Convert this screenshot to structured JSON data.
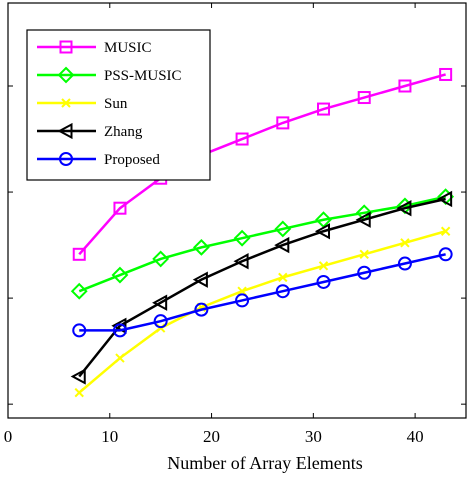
{
  "chart_data": {
    "type": "line",
    "title": "",
    "xlabel": "Number of Array Elements",
    "ylabel": "",
    "xlim": [
      0,
      45
    ],
    "ylim": [
      0,
      9
    ],
    "grid": false,
    "legend": "top-left",
    "x": [
      7,
      11,
      15,
      19,
      23,
      27,
      31,
      35,
      39,
      43
    ],
    "xticks": [
      0,
      10,
      20,
      30,
      40
    ],
    "xtick_labels": [
      "0",
      "10",
      "20",
      "30",
      "40"
    ],
    "yticks": [
      0.3,
      2.6,
      4.9,
      7.2
    ],
    "series": [
      {
        "name": "MUSIC",
        "color": "#ff00ff",
        "marker": "square",
        "values": [
          3.55,
          4.55,
          5.2,
          5.7,
          6.05,
          6.4,
          6.7,
          6.95,
          7.2,
          7.45
        ]
      },
      {
        "name": "PSS-MUSIC",
        "color": "#00ff00",
        "marker": "diamond",
        "values": [
          2.75,
          3.1,
          3.45,
          3.7,
          3.9,
          4.1,
          4.3,
          4.45,
          4.6,
          4.8
        ]
      },
      {
        "name": "Sun",
        "color": "#ffff00",
        "marker": "x",
        "values": [
          0.55,
          1.3,
          1.95,
          2.4,
          2.75,
          3.05,
          3.3,
          3.55,
          3.8,
          4.05
        ]
      },
      {
        "name": "Zhang",
        "color": "#000000",
        "marker": "triangle-left",
        "values": [
          0.9,
          2.0,
          2.5,
          3.0,
          3.4,
          3.75,
          4.05,
          4.3,
          4.55,
          4.75
        ]
      },
      {
        "name": "Proposed",
        "color": "#0000ff",
        "marker": "circle",
        "values": [
          1.9,
          1.9,
          2.1,
          2.35,
          2.55,
          2.75,
          2.95,
          3.15,
          3.35,
          3.55
        ]
      }
    ]
  }
}
